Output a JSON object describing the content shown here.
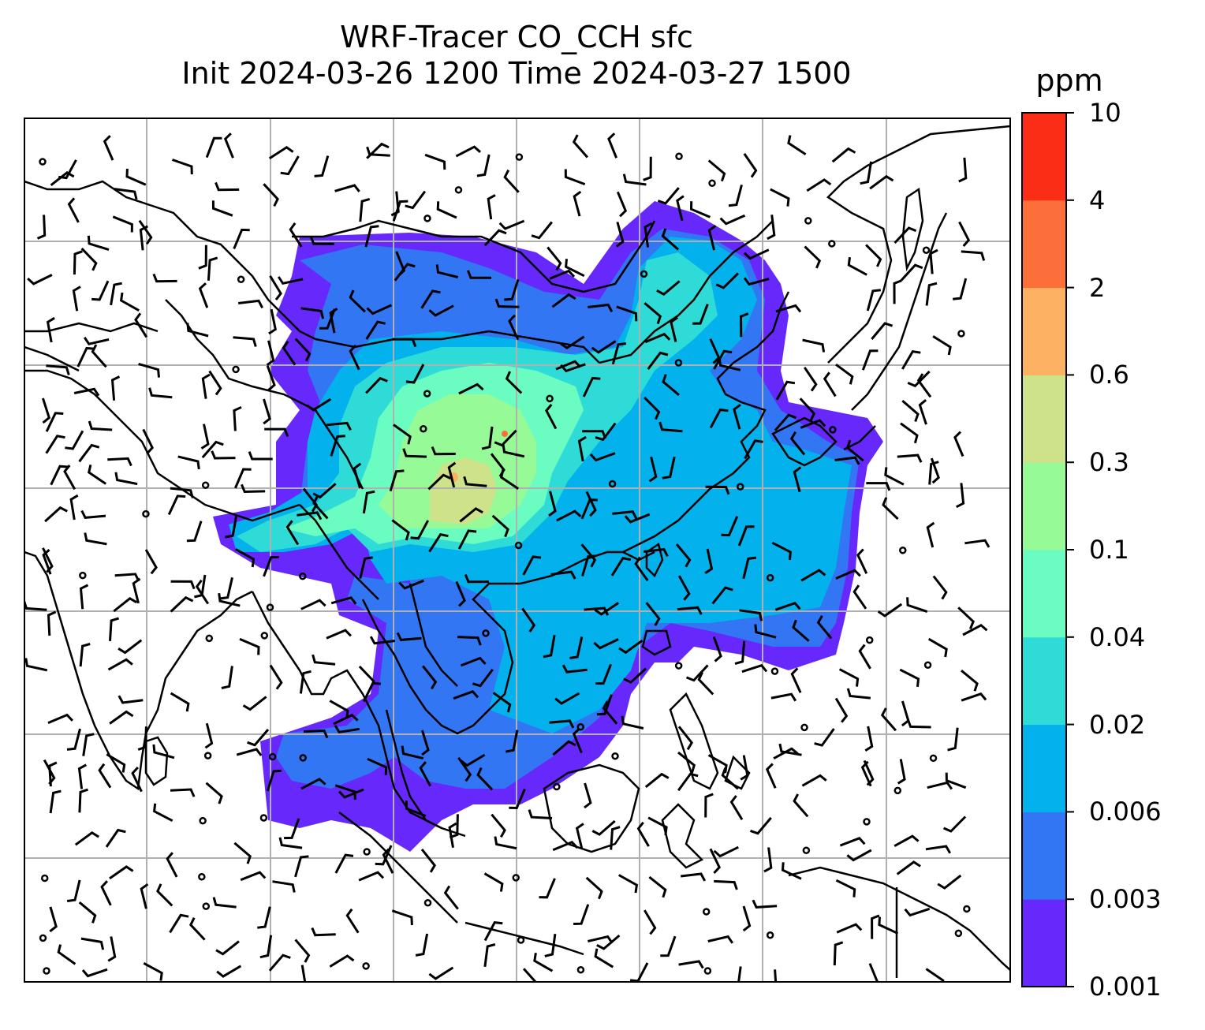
{
  "title": {
    "line1": "WRF-Tracer CO_CCH sfc",
    "line2": "Init 2024-03-26 1200 Time 2024-03-27 1500"
  },
  "colorbar": {
    "unit": "ppm",
    "levels": [
      "0.001",
      "0.003",
      "0.006",
      "0.02",
      "0.04",
      "0.1",
      "0.3",
      "0.6",
      "2",
      "4",
      "10"
    ],
    "colors": [
      "#6729fb",
      "#3276f3",
      "#03b1ec",
      "#2fdbd6",
      "#6afcc0",
      "#96fb97",
      "#cee289",
      "#fdb162",
      "#fd6f3a",
      "#fb2d17"
    ]
  },
  "map": {
    "gridlines": true,
    "field": "CO_CCH tracer concentration (filled contours)",
    "overlays": [
      "coastlines",
      "country borders",
      "wind barbs"
    ]
  }
}
